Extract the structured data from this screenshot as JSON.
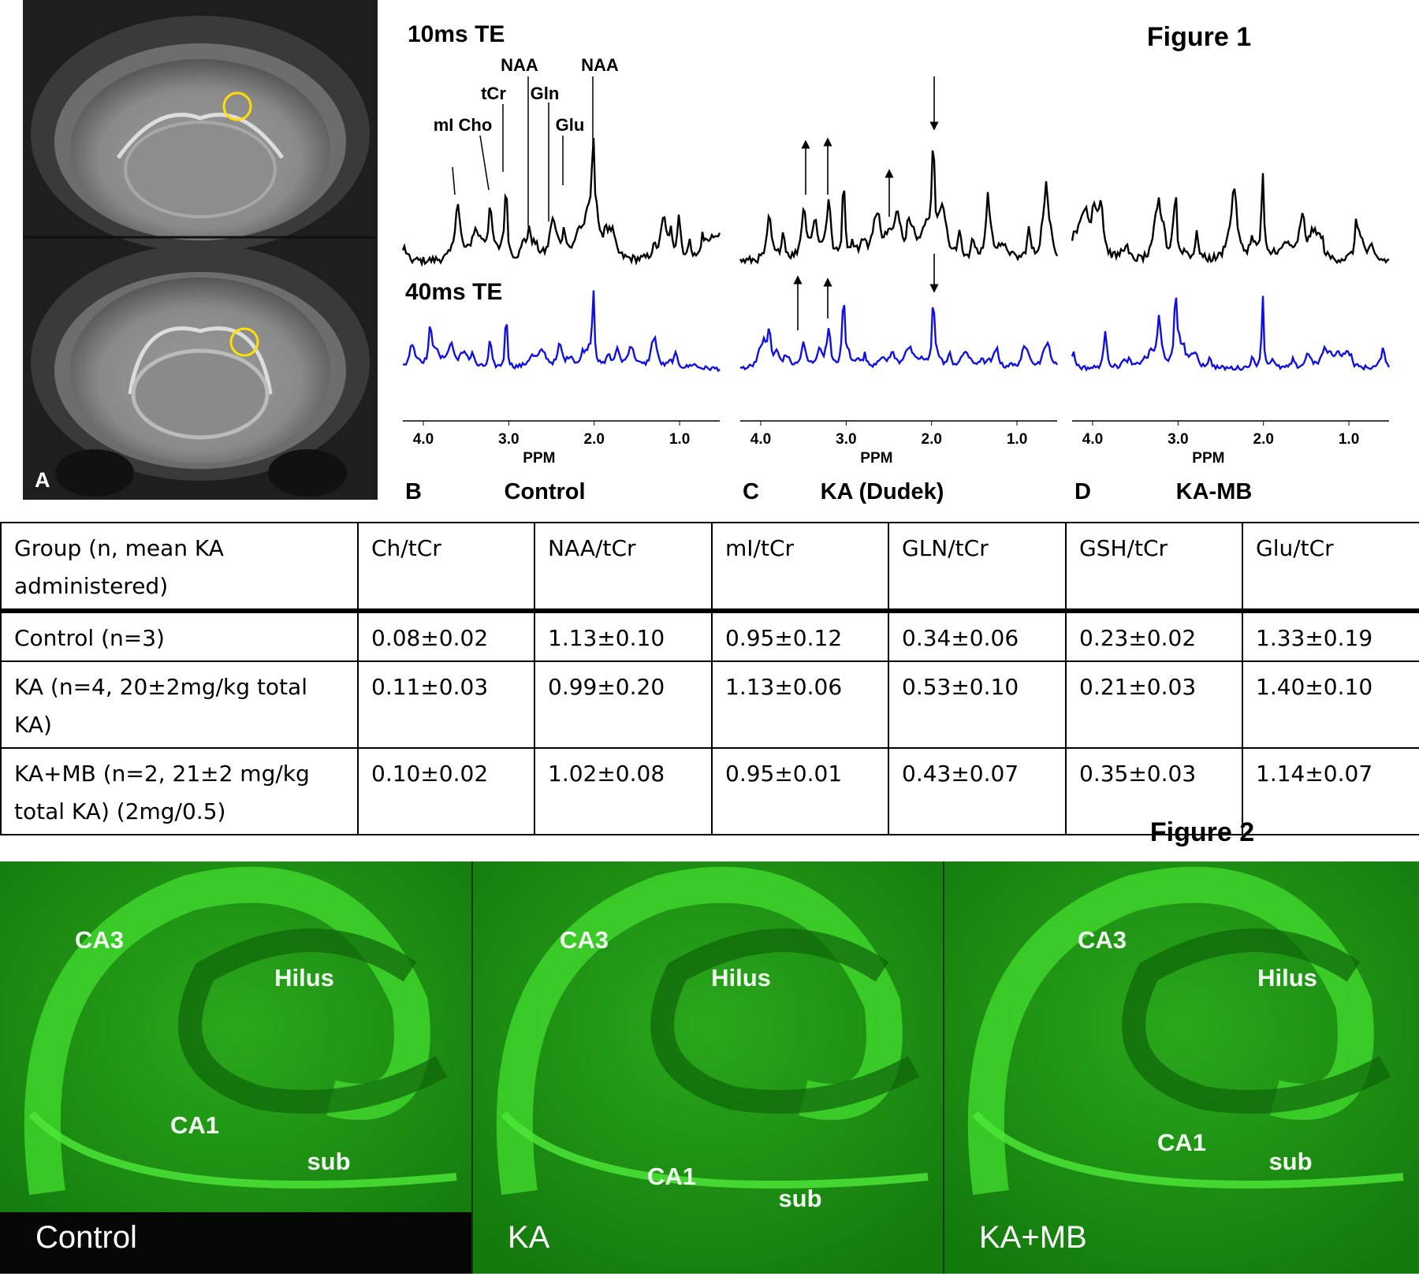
{
  "figure1": {
    "title": "Figure 1",
    "panel_a": {
      "label": "A"
    },
    "spectra": {
      "te_labels": [
        "10ms TE",
        "40ms TE"
      ],
      "xticks": [
        "4.0",
        "3.0",
        "2.0",
        "1.0"
      ],
      "xlabel": "PPM",
      "peak_labels": [
        "NAA",
        "NAA",
        "tCr",
        "Gln",
        "mI Cho",
        "Glu"
      ],
      "panels": [
        {
          "letter": "B",
          "name": "Control"
        },
        {
          "letter": "C",
          "name": "KA (Dudek)"
        },
        {
          "letter": "D",
          "name": "KA-MB"
        }
      ]
    }
  },
  "table": {
    "header": [
      "Group (n, mean KA administered)",
      "Ch/tCr",
      "NAA/tCr",
      "mI/tCr",
      "GLN/tCr",
      "GSH/tCr",
      "Glu/tCr"
    ],
    "rows": [
      [
        "Control (n=3)",
        "0.08±0.02",
        "1.13±0.10",
        "0.95±0.12",
        "0.34±0.06",
        "0.23±0.02",
        "1.33±0.19"
      ],
      [
        "KA (n=4, 20±2mg/kg total KA)",
        "0.11±0.03",
        "0.99±0.20",
        "1.13±0.06",
        "0.53±0.10",
        "0.21±0.03",
        "1.40±0.10"
      ],
      [
        "KA+MB (n=2, 21±2 mg/kg total KA) (2mg/0.5)",
        "0.10±0.02",
        "1.02±0.08",
        "0.95±0.01",
        "0.43±0.07",
        "0.35±0.03",
        "1.14±0.07"
      ]
    ]
  },
  "figure2": {
    "title": "Figure 2",
    "panels": [
      {
        "name": "Control",
        "labels": [
          "CA3",
          "Hilus",
          "CA1",
          "sub"
        ]
      },
      {
        "name": "KA",
        "labels": [
          "CA3",
          "Hilus",
          "CA1",
          "sub"
        ]
      },
      {
        "name": "KA+MB",
        "labels": [
          "CA3",
          "Hilus",
          "CA1",
          "sub"
        ]
      }
    ]
  }
}
